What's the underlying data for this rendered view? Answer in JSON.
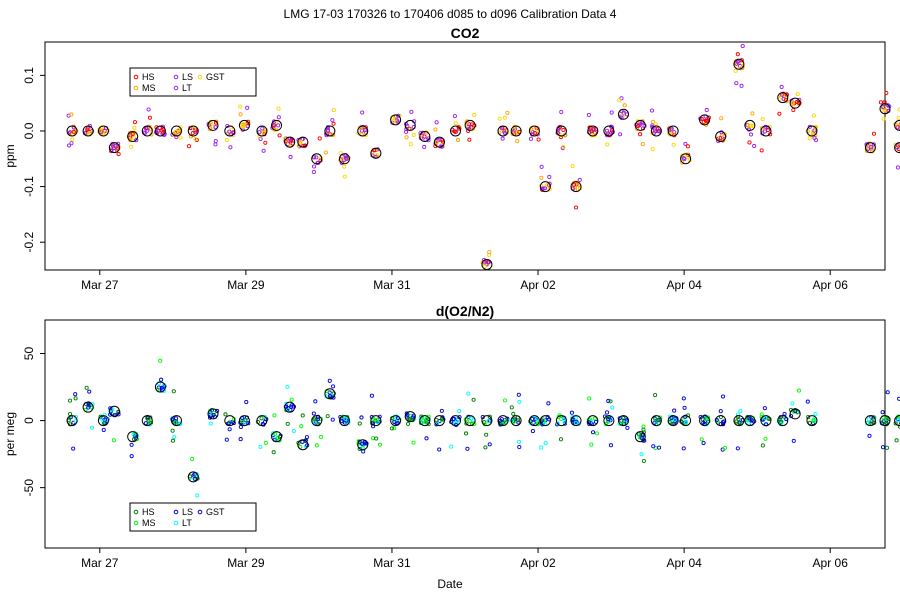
{
  "figure_title": "LMG   17-03    170326 to 170406    d085 to d096   Calibration Data 4",
  "x_axis_label": "Date",
  "colors": {
    "HS": "#ff0000",
    "MS": "#ffa500",
    "LS": "#a020f0",
    "LT": "#a020f0",
    "GST": "#ffd700",
    "HS2": "#008000",
    "MS2": "#00ff00",
    "LS2": "#0000ff",
    "LT2": "#00ffff",
    "GST2": "#0000cd",
    "mean": "#000000"
  },
  "chart_data": [
    {
      "type": "scatter",
      "title": "CO2",
      "ylabel": "ppm",
      "xlabel": "",
      "xlim": [
        85.25,
        96.75
      ],
      "ylim": [
        -0.25,
        0.16
      ],
      "x_ticks": [
        {
          "x": 86,
          "label": "Mar 27"
        },
        {
          "x": 88,
          "label": "Mar 29"
        },
        {
          "x": 90,
          "label": "Mar 31"
        },
        {
          "x": 92,
          "label": "Apr 02"
        },
        {
          "x": 94,
          "label": "Apr 04"
        },
        {
          "x": 96,
          "label": "Apr 06"
        }
      ],
      "y_ticks": [
        {
          "y": 0.1,
          "label": "0.1"
        },
        {
          "y": 0.0,
          "label": "0.0"
        },
        {
          "y": -0.1,
          "label": "-0.1"
        },
        {
          "y": -0.2,
          "label": "-0.2"
        }
      ],
      "legend": [
        {
          "name": "HS",
          "color": "#ff0000"
        },
        {
          "name": "MS",
          "color": "#ffa500"
        },
        {
          "name": "LS",
          "color": "#a020f0"
        },
        {
          "name": "LT",
          "color": "#a020f0"
        },
        {
          "name": "GST",
          "color": "#ffd700"
        }
      ],
      "legend_position": "top-left",
      "means": [
        [
          85.62,
          0.0
        ],
        [
          85.84,
          0.0
        ],
        [
          86.05,
          0.0
        ],
        [
          86.2,
          -0.03
        ],
        [
          86.45,
          -0.01
        ],
        [
          86.65,
          0.0
        ],
        [
          86.83,
          0.0
        ],
        [
          87.05,
          0.0
        ],
        [
          87.28,
          0.0
        ],
        [
          87.55,
          0.01
        ],
        [
          87.78,
          0.0
        ],
        [
          87.98,
          0.01
        ],
        [
          88.22,
          0.0
        ],
        [
          88.42,
          0.01
        ],
        [
          88.6,
          -0.02
        ],
        [
          88.78,
          -0.02
        ],
        [
          88.97,
          -0.05
        ],
        [
          89.15,
          0.0
        ],
        [
          89.35,
          -0.05
        ],
        [
          89.6,
          0.0
        ],
        [
          89.78,
          -0.04
        ],
        [
          90.05,
          0.02
        ],
        [
          90.25,
          0.01
        ],
        [
          90.45,
          -0.01
        ],
        [
          90.65,
          -0.02
        ],
        [
          90.87,
          0.0
        ],
        [
          91.07,
          0.01
        ],
        [
          91.3,
          -0.24
        ],
        [
          91.52,
          0.0
        ],
        [
          91.7,
          0.0
        ],
        [
          91.95,
          0.0
        ],
        [
          92.1,
          -0.1
        ],
        [
          92.32,
          0.0
        ],
        [
          92.52,
          -0.1
        ],
        [
          92.75,
          0.0
        ],
        [
          92.97,
          0.0
        ],
        [
          93.17,
          0.03
        ],
        [
          93.4,
          0.01
        ],
        [
          93.62,
          0.0
        ],
        [
          93.85,
          0.0
        ],
        [
          94.02,
          -0.05
        ],
        [
          94.28,
          0.02
        ],
        [
          94.5,
          -0.01
        ],
        [
          94.75,
          0.12
        ],
        [
          94.9,
          0.01
        ],
        [
          95.12,
          0.0
        ],
        [
          95.35,
          0.06
        ],
        [
          95.52,
          0.05
        ],
        [
          95.75,
          0.0
        ],
        [
          96.55,
          -0.03
        ],
        [
          96.75,
          0.04
        ],
        [
          96.95,
          0.01
        ],
        [
          96.95,
          -0.03
        ]
      ]
    },
    {
      "type": "scatter",
      "title": "d(O2/N2)",
      "ylabel": "per meg",
      "xlabel": "Date",
      "xlim": [
        85.25,
        96.75
      ],
      "ylim": [
        -95,
        75
      ],
      "x_ticks": [
        {
          "x": 86,
          "label": "Mar 27"
        },
        {
          "x": 88,
          "label": "Mar 29"
        },
        {
          "x": 90,
          "label": "Mar 31"
        },
        {
          "x": 92,
          "label": "Apr 02"
        },
        {
          "x": 94,
          "label": "Apr 04"
        },
        {
          "x": 96,
          "label": "Apr 06"
        }
      ],
      "y_ticks": [
        {
          "y": 50,
          "label": "50"
        },
        {
          "y": 0,
          "label": "0"
        },
        {
          "y": -50,
          "label": "-50"
        }
      ],
      "legend": [
        {
          "name": "HS",
          "color": "#008000"
        },
        {
          "name": "MS",
          "color": "#00ff00"
        },
        {
          "name": "LS",
          "color": "#0000ff"
        },
        {
          "name": "LT",
          "color": "#00ffff"
        },
        {
          "name": "GST",
          "color": "#0000cd"
        }
      ],
      "legend_position": "bottom-left",
      "means": [
        [
          85.62,
          0
        ],
        [
          85.84,
          10
        ],
        [
          86.05,
          0
        ],
        [
          86.2,
          7
        ],
        [
          86.45,
          -12
        ],
        [
          86.65,
          0
        ],
        [
          86.83,
          25
        ],
        [
          87.05,
          0
        ],
        [
          87.28,
          -42
        ],
        [
          87.55,
          5
        ],
        [
          87.78,
          0
        ],
        [
          87.98,
          0
        ],
        [
          88.22,
          0
        ],
        [
          88.42,
          -12
        ],
        [
          88.6,
          10
        ],
        [
          88.78,
          -18
        ],
        [
          88.97,
          0
        ],
        [
          89.15,
          20
        ],
        [
          89.35,
          0
        ],
        [
          89.6,
          -18
        ],
        [
          89.78,
          0
        ],
        [
          90.05,
          0
        ],
        [
          90.25,
          3
        ],
        [
          90.45,
          0
        ],
        [
          90.65,
          0
        ],
        [
          90.87,
          0
        ],
        [
          91.07,
          0
        ],
        [
          91.3,
          0
        ],
        [
          91.52,
          0
        ],
        [
          91.7,
          0
        ],
        [
          91.95,
          0
        ],
        [
          92.1,
          0
        ],
        [
          92.32,
          0
        ],
        [
          92.52,
          0
        ],
        [
          92.75,
          0
        ],
        [
          92.97,
          0
        ],
        [
          93.17,
          0
        ],
        [
          93.4,
          -12
        ],
        [
          93.62,
          0
        ],
        [
          93.85,
          0
        ],
        [
          94.02,
          0
        ],
        [
          94.28,
          0
        ],
        [
          94.5,
          0
        ],
        [
          94.75,
          0
        ],
        [
          94.9,
          0
        ],
        [
          95.12,
          0
        ],
        [
          95.35,
          0
        ],
        [
          95.52,
          5
        ],
        [
          95.75,
          0
        ],
        [
          96.55,
          0
        ],
        [
          96.75,
          0
        ],
        [
          96.95,
          0
        ]
      ]
    }
  ]
}
